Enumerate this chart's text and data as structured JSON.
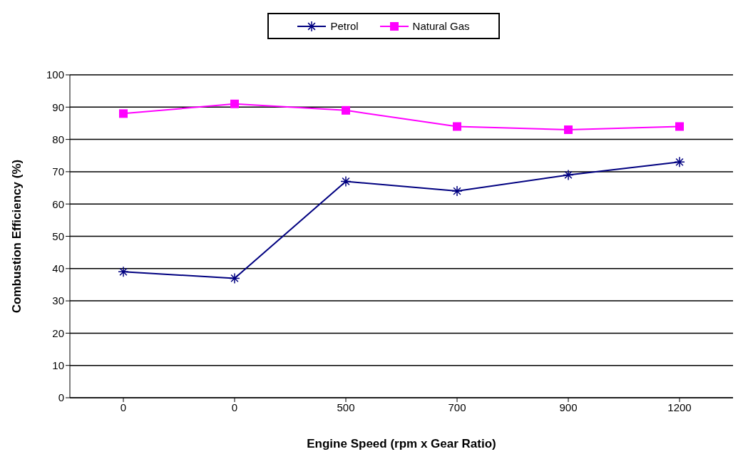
{
  "chart_data": {
    "type": "line",
    "xlabel": "Engine Speed (rpm x Gear Ratio)",
    "ylabel": "Combustion Efficiency (%)",
    "categories": [
      "0",
      "0",
      "500",
      "700",
      "900",
      "1200"
    ],
    "series": [
      {
        "name": "Petrol",
        "color": "#000080",
        "marker": "cross",
        "values": [
          39,
          37,
          67,
          64,
          69,
          73
        ]
      },
      {
        "name": "Natural Gas",
        "color": "#ff00ff",
        "marker": "square",
        "values": [
          88,
          91,
          89,
          84,
          83,
          84
        ]
      }
    ],
    "ylim": [
      0,
      100
    ],
    "yticks": [
      0,
      10,
      20,
      30,
      40,
      50,
      60,
      70,
      80,
      90,
      100
    ],
    "grid": "y",
    "legend": "top",
    "line_style": "solid"
  }
}
